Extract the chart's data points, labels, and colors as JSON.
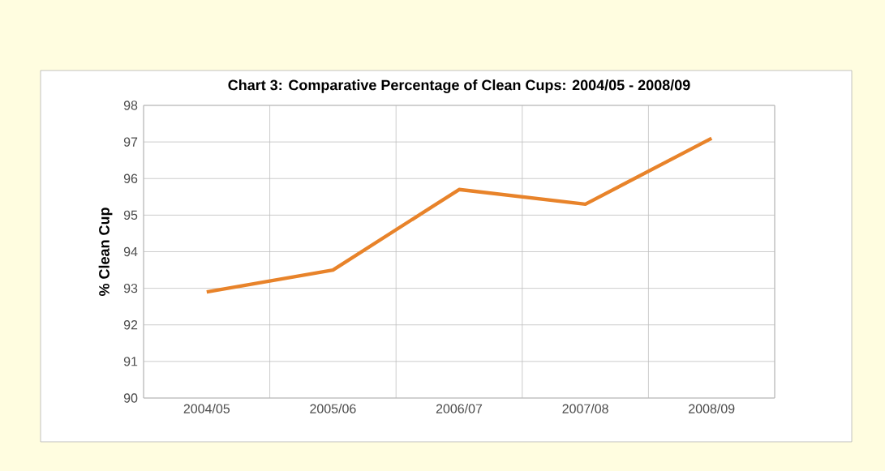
{
  "chart_data": {
    "type": "line",
    "title": "Chart 3: Comparative Percentage of Clean Cups: 2004/05 - 2008/09",
    "ylabel": "% Clean Cup",
    "categories": [
      "2004/05",
      "2005/06",
      "2006/07",
      "2007/08",
      "2008/09"
    ],
    "values": [
      92.9,
      93.5,
      95.7,
      95.3,
      97.1
    ],
    "color": "#e8832a",
    "ylim": [
      90,
      98
    ],
    "yticks": [
      90,
      91,
      92,
      93,
      94,
      95,
      96,
      97,
      98
    ],
    "grid": true,
    "marker": "none",
    "line_style": "solid"
  }
}
